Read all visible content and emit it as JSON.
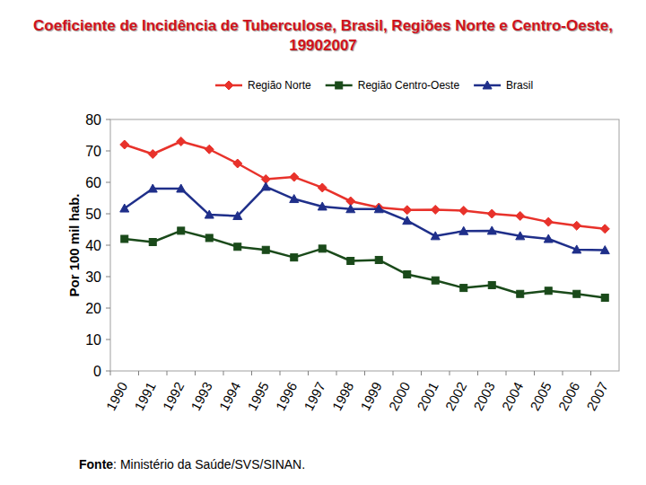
{
  "chart_data": {
    "type": "line",
    "title": "Coeficiente de Incidência de Tuberculose, Brasil, Regiões Norte e Centro-Oeste, 19902007",
    "y_label": "Por 100 mil hab.",
    "source": {
      "label": "Fonte",
      "text": ": Ministério da Saúde/SVS/SINAN."
    },
    "categories": [
      "1990",
      "1991",
      "1992",
      "1993",
      "1994",
      "1995",
      "1996",
      "1997",
      "1998",
      "1999",
      "2000",
      "2001",
      "2002",
      "2003",
      "2004",
      "2005",
      "2006",
      "2007"
    ],
    "series": [
      {
        "name": "Região Norte",
        "color": "#e8322b",
        "marker": "diamond",
        "values": [
          72,
          69,
          73,
          70.5,
          66,
          61,
          61.7,
          58.3,
          54,
          52,
          51.2,
          51.3,
          51,
          50,
          49.3,
          47.4,
          46.2,
          45.2
        ]
      },
      {
        "name": "Região Centro-Oeste",
        "color": "#1a4a1a",
        "marker": "square",
        "values": [
          42,
          41,
          44.6,
          42.3,
          39.5,
          38.5,
          36.1,
          38.9,
          35,
          35.3,
          30.7,
          28.8,
          26.4,
          27.3,
          24.5,
          25.5,
          24.5,
          23.3
        ]
      },
      {
        "name": "Brasil",
        "color": "#1f2f8a",
        "marker": "triangle",
        "values": [
          51.7,
          58,
          58,
          49.7,
          49.3,
          58.6,
          54.7,
          52.3,
          51.5,
          51.5,
          47.8,
          42.9,
          44.5,
          44.6,
          42.9,
          42,
          38.6,
          38.4
        ]
      }
    ],
    "ylim": [
      0,
      80
    ],
    "yticks": [
      0,
      10,
      20,
      30,
      40,
      50,
      60,
      70,
      80
    ],
    "grid": false,
    "legend": "top",
    "line_style": "solid"
  }
}
